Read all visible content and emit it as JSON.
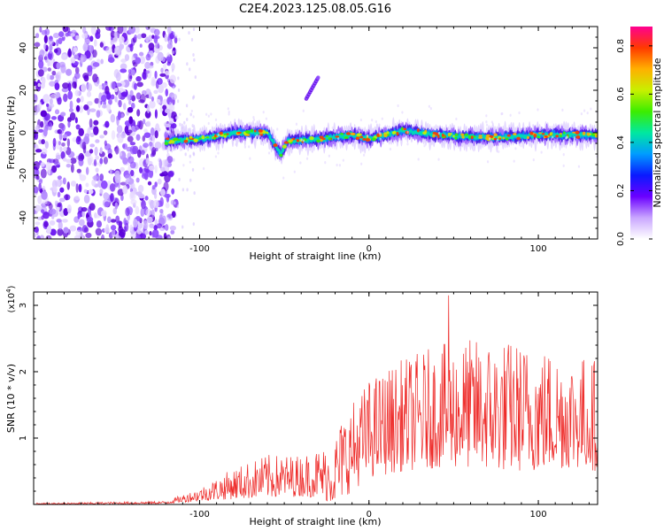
{
  "title": "C2E4.2023.125.08.05.G16",
  "chart_data": [
    {
      "type": "heatmap",
      "xlabel": "Height of straight line (km)",
      "ylabel": "Frequency (Hz)",
      "xlim": [
        -198,
        135
      ],
      "ylim": [
        -50,
        50
      ],
      "xticks": [
        -100,
        0,
        100
      ],
      "yticks": [
        -40,
        -20,
        0,
        20,
        40
      ],
      "colorbar": {
        "label": "Normalized spectral amplitude",
        "range": [
          0.0,
          0.88
        ],
        "ticks": [
          0.0,
          0.2,
          0.4,
          0.6,
          0.8
        ]
      },
      "features": {
        "noise_region_x": [
          -198,
          -120
        ],
        "signal_band": {
          "x_start": -120,
          "x": [
            -120,
            -100,
            -80,
            -60,
            -52,
            -48,
            -30,
            -10,
            0,
            20,
            40,
            60,
            80,
            100,
            120,
            135
          ],
          "center_freq": [
            -4,
            -3,
            0,
            0,
            -10,
            -4,
            -3,
            -1,
            -3,
            1,
            -1,
            -2,
            -2,
            -1,
            -1,
            -1
          ]
        },
        "streak": {
          "x": [
            -37,
            -30
          ],
          "freq": [
            16,
            26
          ]
        }
      },
      "grid": false
    },
    {
      "type": "line",
      "xlabel": "Height of straight line (km)",
      "ylabel": "SNR (10 * v/v)",
      "multiplier_label": "(x10",
      "multiplier_exp": "4",
      "multiplier_close": ")",
      "xlim": [
        -198,
        135
      ],
      "ylim": [
        0,
        3.2
      ],
      "xticks": [
        -100,
        0,
        100
      ],
      "yticks": [
        1,
        2,
        3
      ],
      "color": "#ee2a28",
      "envelope": {
        "x": [
          -198,
          -120,
          -100,
          -80,
          -60,
          -40,
          -30,
          -22,
          -15,
          -5,
          0,
          20,
          40,
          60,
          80,
          100,
          120,
          135
        ],
        "low": [
          0.0,
          0.01,
          0.05,
          0.08,
          0.1,
          0.12,
          0.1,
          0.02,
          0.1,
          0.3,
          0.4,
          0.5,
          0.55,
          0.55,
          0.5,
          0.5,
          0.55,
          0.5
        ],
        "high": [
          0.02,
          0.05,
          0.25,
          0.55,
          0.75,
          0.75,
          0.85,
          0.9,
          1.4,
          1.7,
          1.9,
          2.2,
          2.4,
          2.5,
          2.5,
          2.4,
          2.3,
          2.2
        ]
      },
      "peak": {
        "x": 47,
        "y": 3.15
      },
      "grid": false
    }
  ]
}
